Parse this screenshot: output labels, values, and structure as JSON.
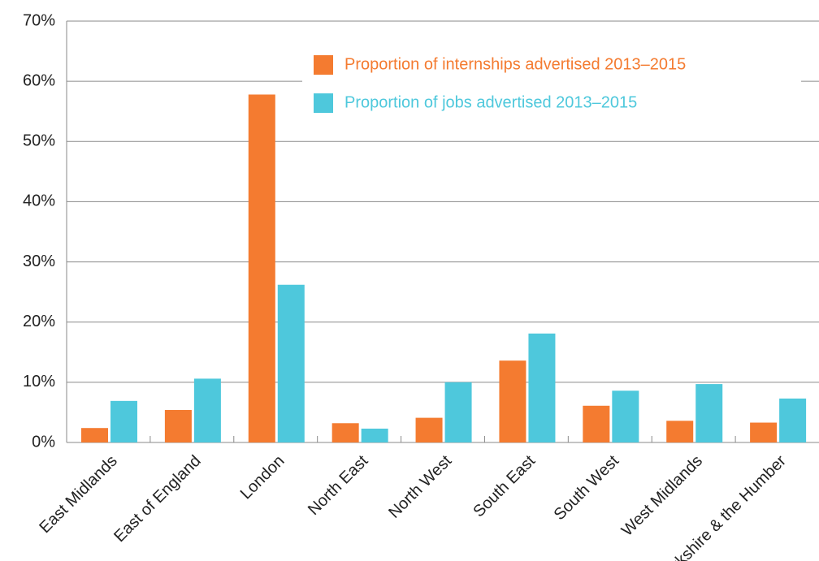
{
  "chart_data": {
    "type": "bar",
    "categories": [
      "East Midlands",
      "East of England",
      "London",
      "North East",
      "North West",
      "South East",
      "South West",
      "West Midlands",
      "Yorkshire & the Humber"
    ],
    "series": [
      {
        "name": "Proportion of internships advertised 2013–2015",
        "color": "#f47b30",
        "values": [
          2.4,
          5.4,
          57.8,
          3.2,
          4.1,
          13.6,
          6.1,
          3.6,
          3.3
        ]
      },
      {
        "name": "Proportion of jobs advertised 2013–2015",
        "color": "#4ec8dc",
        "values": [
          6.9,
          10.6,
          26.2,
          2.3,
          10.0,
          18.1,
          8.6,
          9.7,
          7.3
        ]
      }
    ],
    "ylim": [
      0,
      70
    ],
    "yticks": [
      {
        "value": 0,
        "label": "0%"
      },
      {
        "value": 10,
        "label": "10%"
      },
      {
        "value": 20,
        "label": "20%"
      },
      {
        "value": 30,
        "label": "30%"
      },
      {
        "value": 40,
        "label": "40%"
      },
      {
        "value": 50,
        "label": "50%"
      },
      {
        "value": 60,
        "label": "60%"
      },
      {
        "value": 70,
        "label": "70%"
      }
    ],
    "grid": true,
    "legend": "top-right"
  }
}
